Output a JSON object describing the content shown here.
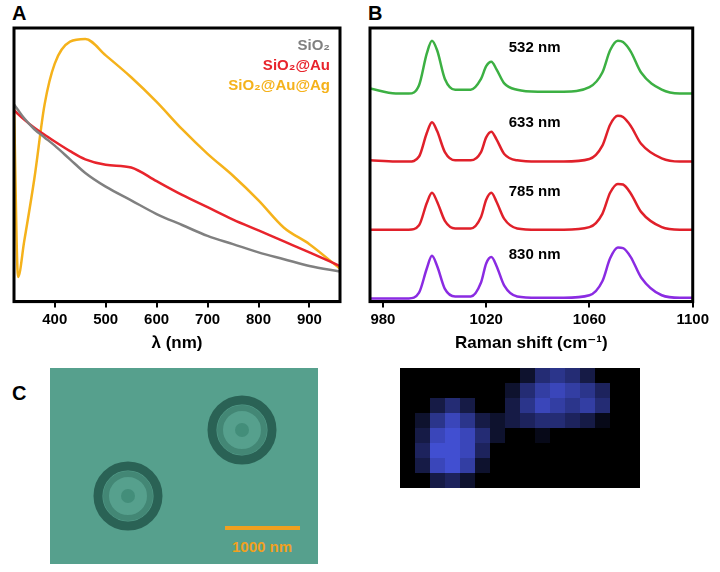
{
  "chart_data": [
    {
      "panel_label": "A",
      "type": "line",
      "x_label": "λ (nm)",
      "x": [
        320,
        328,
        340,
        360,
        380,
        400,
        430,
        460,
        500,
        550,
        600,
        650,
        700,
        750,
        800,
        850,
        900,
        960
      ],
      "series": [
        {
          "name": "SiO₂",
          "color": "#808080",
          "values": [
            0.72,
            0.7,
            0.67,
            0.63,
            0.6,
            0.57,
            0.52,
            0.47,
            0.42,
            0.37,
            0.32,
            0.28,
            0.24,
            0.21,
            0.18,
            0.155,
            0.13,
            0.11
          ]
        },
        {
          "name": "SiO₂@Au",
          "color": "#e8242c",
          "values": [
            0.7,
            0.685,
            0.665,
            0.635,
            0.61,
            0.585,
            0.55,
            0.52,
            0.5,
            0.49,
            0.44,
            0.39,
            0.345,
            0.3,
            0.26,
            0.22,
            0.18,
            0.13
          ]
        },
        {
          "name": "SiO₂@Au@Ag",
          "color": "#f5b21b",
          "values": [
            0.72,
            0.09,
            0.22,
            0.45,
            0.72,
            0.87,
            0.95,
            0.96,
            0.9,
            0.82,
            0.73,
            0.63,
            0.54,
            0.46,
            0.37,
            0.27,
            0.21,
            0.12
          ]
        }
      ],
      "xlim": [
        320,
        960
      ],
      "xticks": [
        400,
        500,
        600,
        700,
        800,
        900
      ],
      "ylim": [
        0,
        1
      ],
      "tick_labels": "x",
      "grid": false,
      "legend": "upper right"
    },
    {
      "panel_label": "B",
      "type": "line",
      "x_label": "Raman shift (cm⁻¹)",
      "x": [
        975,
        985,
        990,
        994,
        997,
        999,
        1001,
        1004,
        1008,
        1014,
        1018,
        1020,
        1022,
        1024,
        1027,
        1032,
        1040,
        1050,
        1060,
        1065,
        1068,
        1071,
        1073,
        1076,
        1080,
        1088,
        1095,
        1100
      ],
      "series": [
        {
          "name": "532 nm",
          "color": "#3cb043",
          "values": [
            3.35,
            3.27,
            3.27,
            3.4,
            3.9,
            4.1,
            3.95,
            3.5,
            3.33,
            3.33,
            3.5,
            3.7,
            3.77,
            3.65,
            3.43,
            3.33,
            3.3,
            3.3,
            3.37,
            3.6,
            3.95,
            4.1,
            4.08,
            3.93,
            3.6,
            3.33,
            3.27,
            3.27
          ]
        },
        {
          "name": "633 nm",
          "color": "#e0202a",
          "values": [
            2.22,
            2.2,
            2.2,
            2.28,
            2.65,
            2.82,
            2.68,
            2.35,
            2.22,
            2.22,
            2.35,
            2.58,
            2.67,
            2.55,
            2.32,
            2.22,
            2.2,
            2.2,
            2.24,
            2.45,
            2.78,
            2.92,
            2.9,
            2.76,
            2.48,
            2.25,
            2.2,
            2.2
          ]
        },
        {
          "name": "785 nm",
          "color": "#e0202a",
          "values": [
            1.13,
            1.13,
            1.13,
            1.2,
            1.55,
            1.71,
            1.57,
            1.27,
            1.15,
            1.15,
            1.33,
            1.6,
            1.71,
            1.57,
            1.3,
            1.15,
            1.13,
            1.13,
            1.17,
            1.38,
            1.71,
            1.85,
            1.84,
            1.7,
            1.41,
            1.17,
            1.13,
            1.13
          ]
        },
        {
          "name": "830 nm",
          "color": "#8a2be2",
          "values": [
            0.05,
            0.05,
            0.05,
            0.14,
            0.52,
            0.72,
            0.56,
            0.2,
            0.08,
            0.08,
            0.3,
            0.6,
            0.7,
            0.56,
            0.25,
            0.08,
            0.06,
            0.06,
            0.1,
            0.32,
            0.68,
            0.85,
            0.84,
            0.7,
            0.38,
            0.1,
            0.06,
            0.06
          ]
        }
      ],
      "xlim": [
        975,
        1100
      ],
      "xticks": [
        980,
        1020,
        1060,
        1100
      ],
      "ylim": [
        0,
        4.3
      ],
      "tick_labels": "x",
      "grid": false
    }
  ],
  "image_panel": {
    "panel_label": "C",
    "scale_bar_label": "1000 nm",
    "raman_map": {
      "cells": [
        [
          0,
          0,
          0,
          0,
          0,
          0,
          0,
          0,
          0.2,
          0.5,
          0.6,
          0.5,
          0.3,
          0,
          0,
          0
        ],
        [
          0,
          0,
          0,
          0,
          0,
          0,
          0,
          0.2,
          0.5,
          0.7,
          0.8,
          0.7,
          0.6,
          0.4,
          0,
          0
        ],
        [
          0,
          0,
          0.3,
          0.5,
          0.3,
          0,
          0,
          0.3,
          0.6,
          0.8,
          0.7,
          0.6,
          0.7,
          0.5,
          0,
          0
        ],
        [
          0,
          0.2,
          0.6,
          0.8,
          0.6,
          0.3,
          0.2,
          0.3,
          0.4,
          0.5,
          0.5,
          0.4,
          0.3,
          0.1,
          0,
          0
        ],
        [
          0,
          0.3,
          0.8,
          0.9,
          0.8,
          0.5,
          0.2,
          0,
          0,
          0.1,
          0,
          0,
          0,
          0,
          0,
          0
        ],
        [
          0,
          0.4,
          0.9,
          0.9,
          0.8,
          0.4,
          0,
          0,
          0,
          0,
          0,
          0,
          0,
          0,
          0,
          0
        ],
        [
          0,
          0.3,
          0.8,
          0.9,
          0.7,
          0.2,
          0,
          0,
          0,
          0,
          0,
          0,
          0,
          0,
          0,
          0
        ],
        [
          0,
          0,
          0.3,
          0.4,
          0.2,
          0,
          0,
          0,
          0,
          0,
          0,
          0,
          0,
          0,
          0,
          0
        ]
      ]
    }
  }
}
